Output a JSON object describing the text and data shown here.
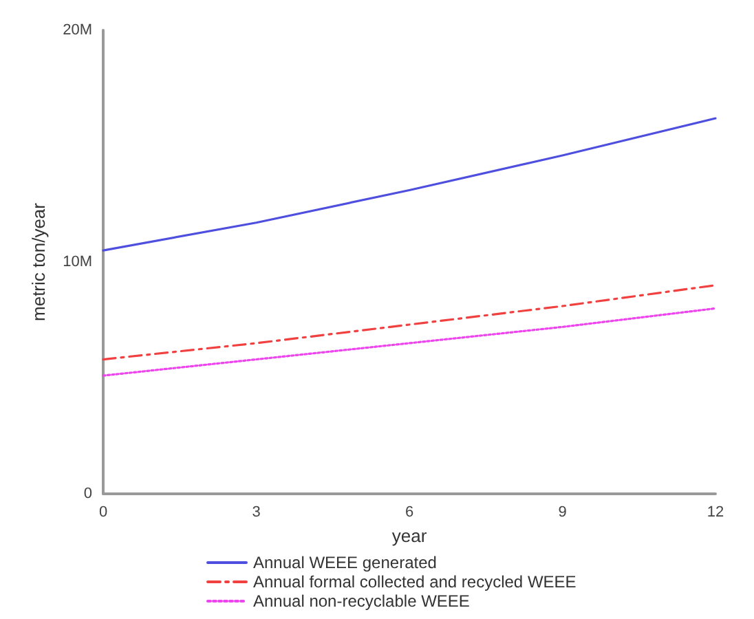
{
  "chart_data": {
    "type": "line",
    "xlabel": "year",
    "ylabel": "metric ton/year",
    "x": [
      0,
      3,
      6,
      9,
      12
    ],
    "series": [
      {
        "name": "Annual WEEE generated",
        "color": "#4f4fdf",
        "line_style": "solid",
        "values": [
          10500000,
          11700000,
          13100000,
          14600000,
          16200000
        ]
      },
      {
        "name": "Annual formal collected and recycled WEEE",
        "color": "#f04040",
        "line_style": "dashdot",
        "values": [
          5800000,
          6500000,
          7300000,
          8100000,
          9000000
        ]
      },
      {
        "name": "Annual non-recyclable WEEE",
        "color": "#ee44ee",
        "line_style": "dotted",
        "values": [
          5100000,
          5800000,
          6500000,
          7200000,
          8000000
        ]
      }
    ],
    "xlim": [
      0,
      12
    ],
    "xticks": [
      0,
      3,
      6,
      9,
      12
    ],
    "ylim": [
      0,
      20000000
    ],
    "yticks": [
      0,
      {
        "value": 10000000,
        "label": "10M"
      },
      {
        "value": 20000000,
        "label": "20M"
      }
    ],
    "grid": false,
    "legend": "bottom",
    "marker": "none"
  }
}
